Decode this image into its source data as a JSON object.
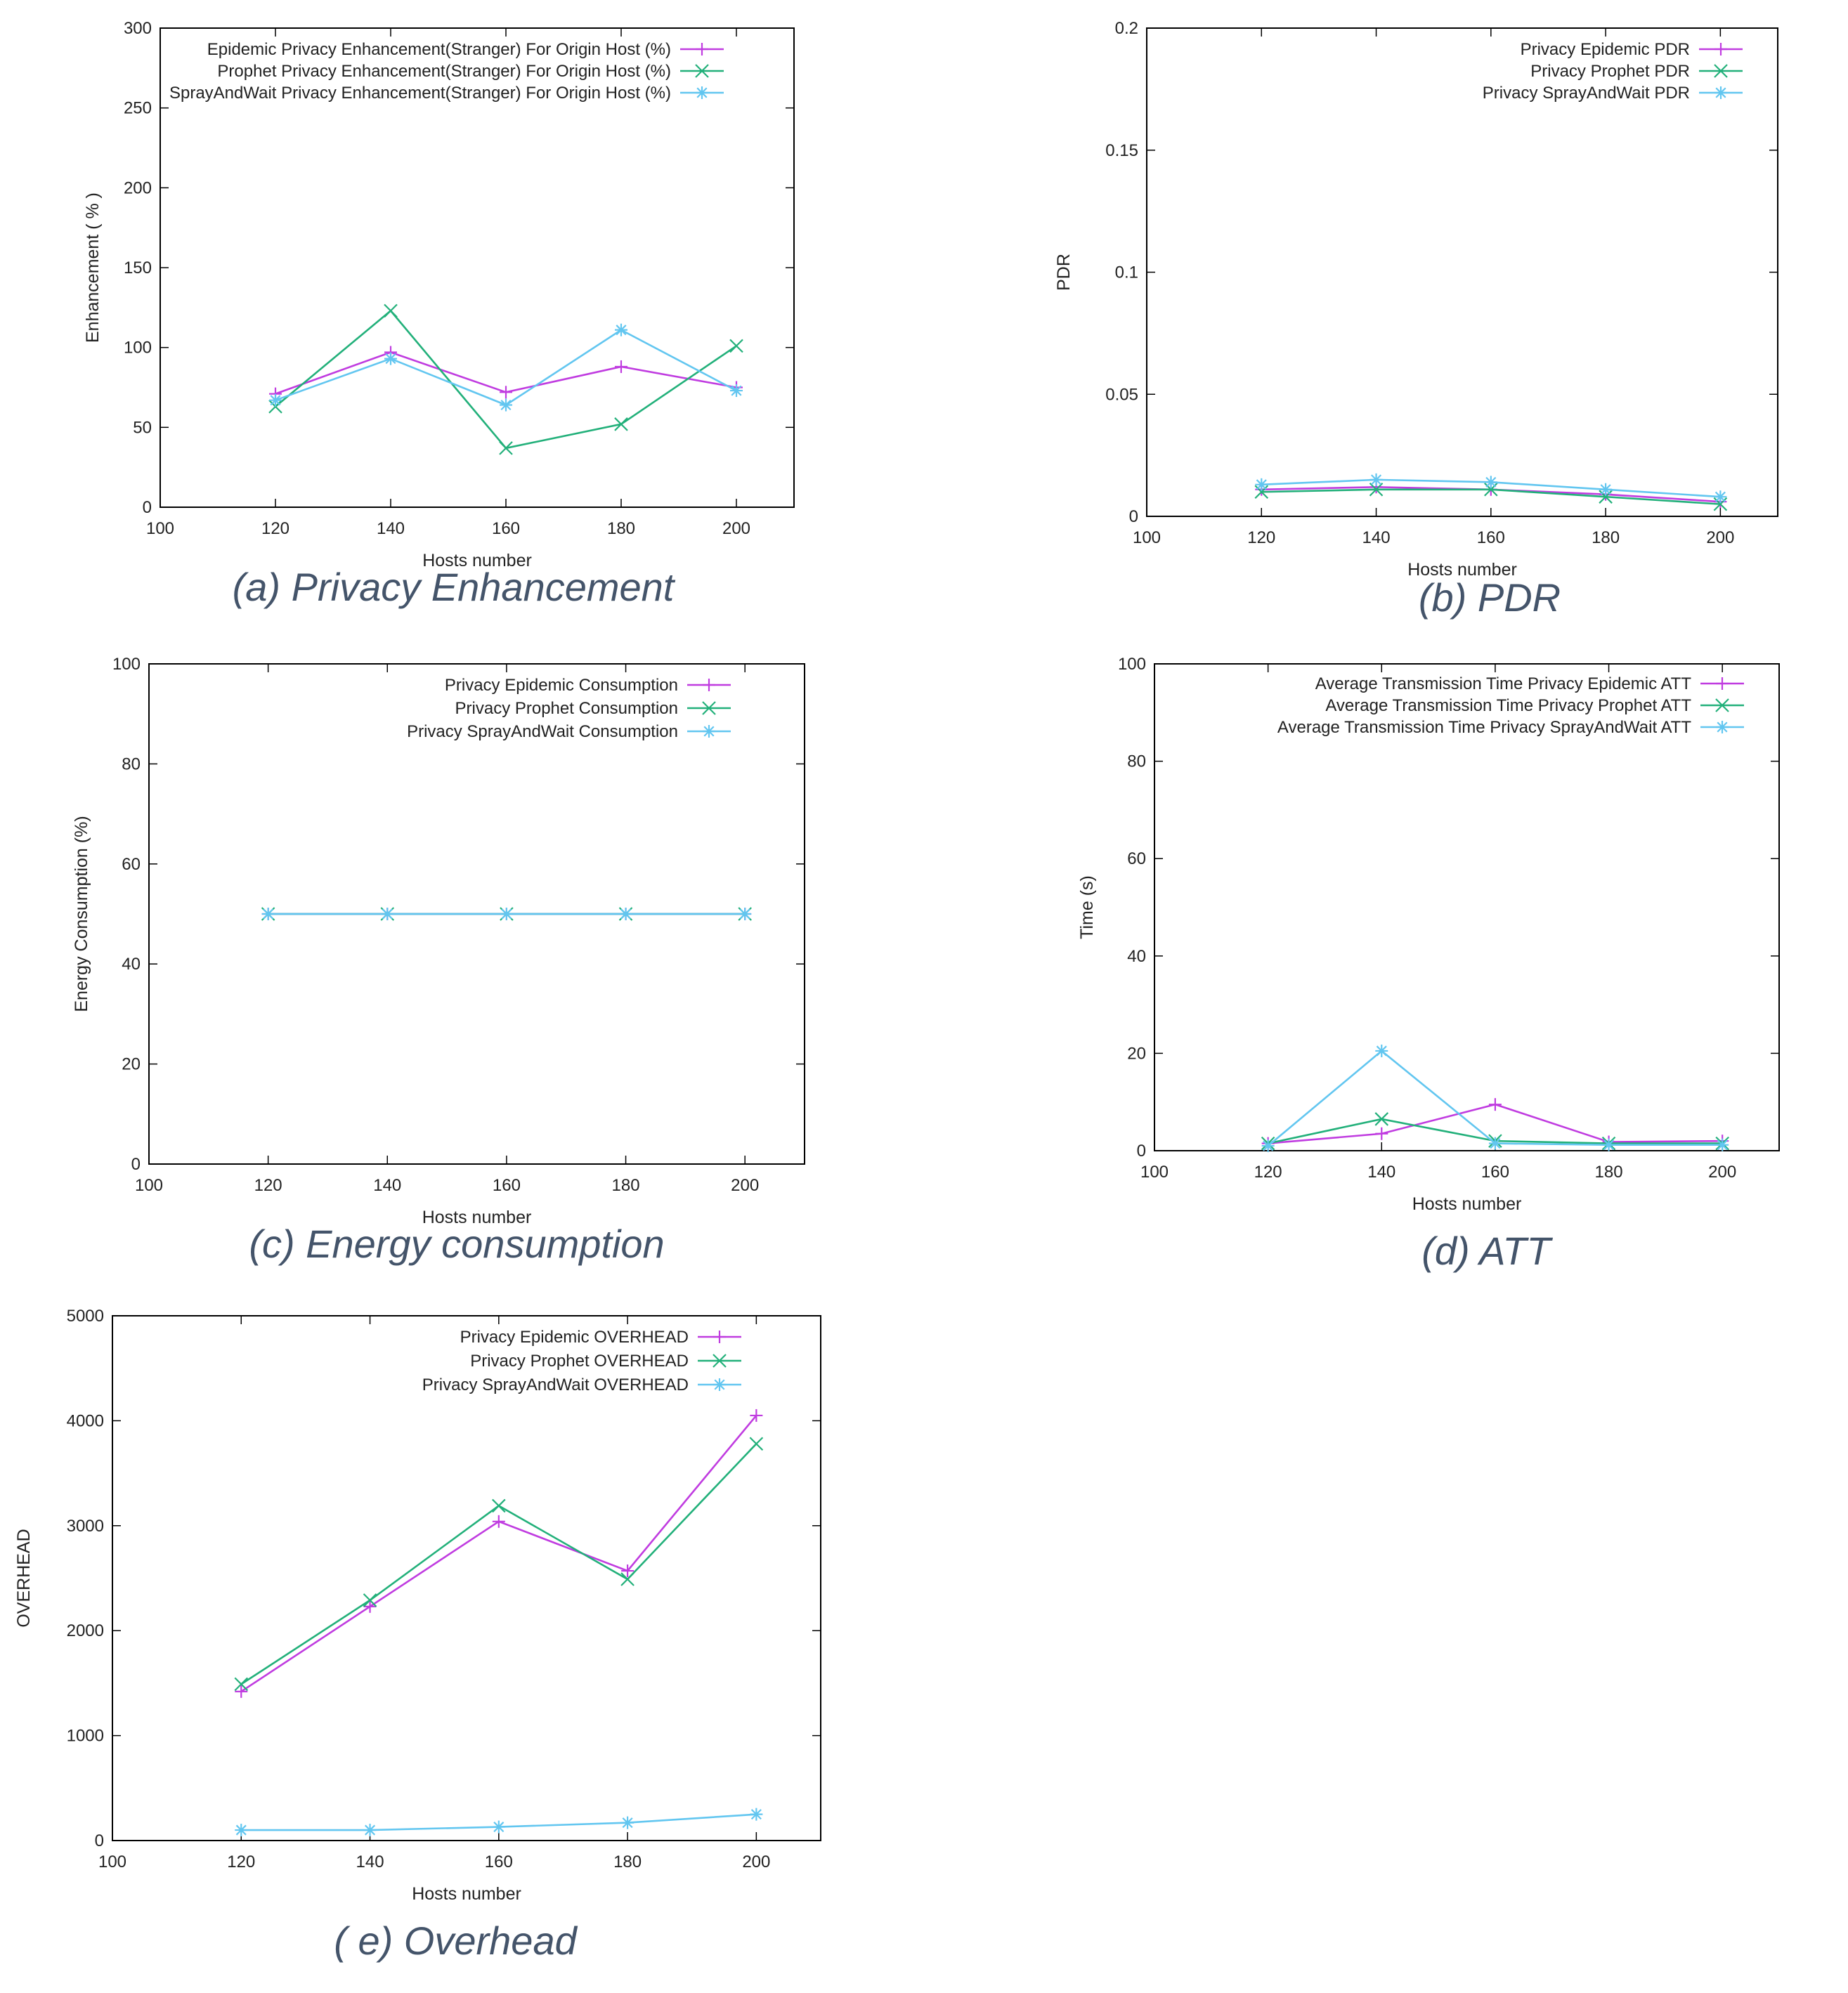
{
  "colors": {
    "epidemic": "#c03ce0",
    "prophet": "#22b07a",
    "spray": "#62c6f0",
    "frame": "#000000"
  },
  "chart_data": [
    {
      "id": "a",
      "type": "line",
      "caption": "(a) Privacy Enhancement",
      "xlabel": "Hosts number",
      "ylabel": "Enhancement ( % )",
      "xlim": [
        100,
        210
      ],
      "ylim": [
        0,
        300
      ],
      "xticks": [
        "100",
        "120",
        "140",
        "160",
        "180",
        "200"
      ],
      "yticks": [
        "0",
        "50",
        "100",
        "150",
        "200",
        "250",
        "300"
      ],
      "x": [
        120,
        140,
        160,
        180,
        200
      ],
      "series": [
        {
          "key": "epidemic",
          "name": "Epidemic  Privacy  Enhancement(Stranger)  For  Origin  Host  (%)",
          "marker": "plus",
          "values": [
            71,
            97,
            72,
            88,
            75
          ]
        },
        {
          "key": "prophet",
          "name": "Prophet   Privacy  Enhancement(Stranger)  For  Origin  Host  (%)",
          "marker": "cross",
          "values": [
            63,
            123,
            37,
            52,
            101
          ]
        },
        {
          "key": "spray",
          "name": "SprayAndWait   Privacy  Enhancement(Stranger)  For  Origin  Host  (%)",
          "marker": "star",
          "values": [
            67,
            93,
            64,
            111,
            73
          ]
        }
      ]
    },
    {
      "id": "b",
      "type": "line",
      "caption": "(b) PDR",
      "xlabel": "Hosts number",
      "ylabel": "PDR",
      "xlim": [
        100,
        210
      ],
      "ylim": [
        0,
        0.2
      ],
      "xticks": [
        "100",
        "120",
        "140",
        "160",
        "180",
        "200"
      ],
      "yticks": [
        "0",
        "0.05",
        "0.1",
        "0.15",
        "0.2"
      ],
      "x": [
        120,
        140,
        160,
        180,
        200
      ],
      "series": [
        {
          "key": "epidemic",
          "name": "Privacy  Epidemic  PDR",
          "marker": "plus",
          "values": [
            0.011,
            0.012,
            0.011,
            0.009,
            0.006
          ]
        },
        {
          "key": "prophet",
          "name": "Privacy  Prophet  PDR",
          "marker": "cross",
          "values": [
            0.01,
            0.011,
            0.011,
            0.008,
            0.005
          ]
        },
        {
          "key": "spray",
          "name": "Privacy  SprayAndWait  PDR",
          "marker": "star",
          "values": [
            0.013,
            0.015,
            0.014,
            0.011,
            0.008
          ]
        }
      ]
    },
    {
      "id": "c",
      "type": "line",
      "caption": "(c) Energy consumption",
      "xlabel": "Hosts number",
      "ylabel": "Energy Consumption (%)",
      "xlim": [
        100,
        210
      ],
      "ylim": [
        0,
        100
      ],
      "xticks": [
        "100",
        "120",
        "140",
        "160",
        "180",
        "200"
      ],
      "yticks": [
        "0",
        "20",
        "40",
        "60",
        "80",
        "100"
      ],
      "x": [
        120,
        140,
        160,
        180,
        200
      ],
      "series": [
        {
          "key": "epidemic",
          "name": "Privacy  Epidemic  Consumption",
          "marker": "plus",
          "values": [
            50,
            50,
            50,
            50,
            50
          ]
        },
        {
          "key": "prophet",
          "name": "Privacy  Prophet  Consumption",
          "marker": "cross",
          "values": [
            50,
            50,
            50,
            50,
            50
          ]
        },
        {
          "key": "spray",
          "name": "Privacy  SprayAndWait  Consumption",
          "marker": "star",
          "values": [
            50,
            50,
            50,
            50,
            50
          ]
        }
      ]
    },
    {
      "id": "d",
      "type": "line",
      "caption": "(d) ATT",
      "xlabel": "Hosts number",
      "ylabel": "Time (s)",
      "xlim": [
        100,
        210
      ],
      "ylim": [
        0,
        100
      ],
      "xticks": [
        "100",
        "120",
        "140",
        "160",
        "180",
        "200"
      ],
      "yticks": [
        "0",
        "20",
        "40",
        "60",
        "80",
        "100"
      ],
      "x": [
        120,
        140,
        160,
        180,
        200
      ],
      "series": [
        {
          "key": "epidemic",
          "name": "Average  Transmission  Time  Privacy  Epidemic  ATT",
          "marker": "plus",
          "values": [
            1.5,
            3.5,
            9.5,
            1.8,
            2.0
          ]
        },
        {
          "key": "prophet",
          "name": "Average  Transmission  Time  Privacy  Prophet  ATT",
          "marker": "cross",
          "values": [
            1.5,
            6.5,
            2.0,
            1.5,
            1.5
          ]
        },
        {
          "key": "spray",
          "name": "Average  Transmission  Time  Privacy  SprayAndWait  ATT",
          "marker": "star",
          "values": [
            1.0,
            20.5,
            1.5,
            1.2,
            1.2
          ]
        }
      ]
    },
    {
      "id": "e",
      "type": "line",
      "caption": "( e) Overhead",
      "xlabel": "Hosts number",
      "ylabel": "OVERHEAD",
      "xlim": [
        100,
        210
      ],
      "ylim": [
        0,
        5000
      ],
      "xticks": [
        "100",
        "120",
        "140",
        "160",
        "180",
        "200"
      ],
      "yticks": [
        "0",
        "1000",
        "2000",
        "3000",
        "4000",
        "5000"
      ],
      "x": [
        120,
        140,
        160,
        180,
        200
      ],
      "series": [
        {
          "key": "epidemic",
          "name": "Privacy  Epidemic  OVERHEAD",
          "marker": "plus",
          "values": [
            1420,
            2230,
            3040,
            2570,
            4050
          ]
        },
        {
          "key": "prophet",
          "name": "Privacy  Prophet  OVERHEAD",
          "marker": "cross",
          "values": [
            1490,
            2290,
            3190,
            2490,
            3780
          ]
        },
        {
          "key": "spray",
          "name": "Privacy  SprayAndWait  OVERHEAD",
          "marker": "star",
          "values": [
            100,
            100,
            130,
            170,
            250
          ]
        }
      ]
    }
  ]
}
